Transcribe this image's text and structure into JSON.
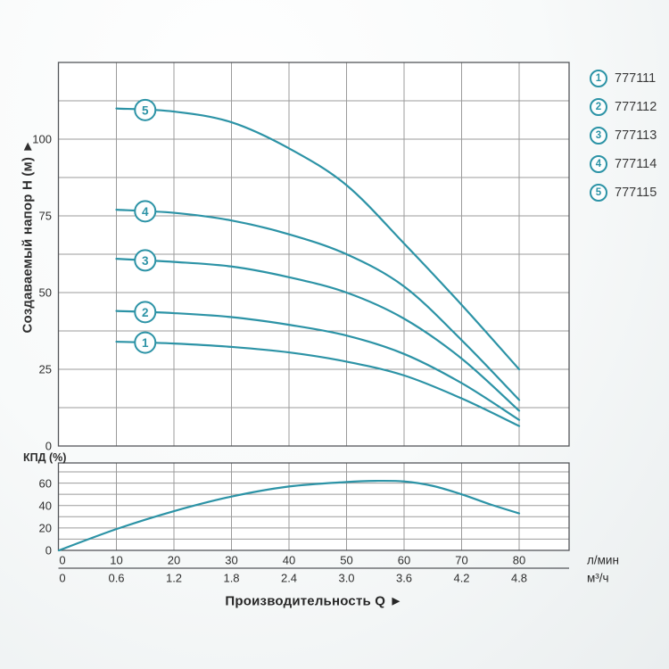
{
  "figure": {
    "y_axis_title": "Создаваемый напор Н (м) ►",
    "x_axis_title": "Производительность Q ►",
    "kpd_axis_title": "КПД (%)",
    "unit_row1": "л/мин",
    "unit_row2": "м³/ч"
  },
  "colors": {
    "curve": "#2c93a6",
    "grid": "#9b9b9b",
    "frame": "#54565a",
    "text": "#2f2f2f",
    "plot_bg": "#ffffff"
  },
  "legend": {
    "items": [
      {
        "num": "1",
        "model": "777111"
      },
      {
        "num": "2",
        "model": "777112"
      },
      {
        "num": "3",
        "model": "777113"
      },
      {
        "num": "4",
        "model": "777114"
      },
      {
        "num": "5",
        "model": "777115"
      }
    ]
  },
  "chart_data": [
    {
      "type": "line",
      "name": "head-vs-flow",
      "title": "",
      "xlabel": "Производительность Q (л/мин | м³/ч)",
      "ylabel": "Создаваемый напор Н (м)",
      "xlim": [
        0,
        88.7
      ],
      "ylim": [
        0,
        125
      ],
      "grid": true,
      "x_ticks_lmin": [
        0,
        10,
        20,
        30,
        40,
        50,
        60,
        70,
        80
      ],
      "x_ticks_m3h": [
        "0",
        "0.6",
        "1.2",
        "1.8",
        "2.4",
        "3.0",
        "3.6",
        "4.2",
        "4.8"
      ],
      "y_ticks": [
        0,
        25,
        50,
        75,
        100
      ],
      "y_grid_step": 12.5,
      "marker_at_x": 15,
      "series": [
        {
          "name": "777111",
          "marker_num": "1",
          "points": [
            [
              10,
              34
            ],
            [
              20,
              33.4
            ],
            [
              30,
              32.3
            ],
            [
              40,
              30.5
            ],
            [
              50,
              27.5
            ],
            [
              60,
              23
            ],
            [
              70,
              15.5
            ],
            [
              80,
              6.5
            ]
          ]
        },
        {
          "name": "777112",
          "marker_num": "2",
          "points": [
            [
              10,
              44
            ],
            [
              20,
              43.3
            ],
            [
              30,
              42
            ],
            [
              40,
              39.5
            ],
            [
              50,
              36
            ],
            [
              60,
              30
            ],
            [
              70,
              20.5
            ],
            [
              80,
              8.5
            ]
          ]
        },
        {
          "name": "777113",
          "marker_num": "3",
          "points": [
            [
              10,
              61
            ],
            [
              20,
              60
            ],
            [
              30,
              58.5
            ],
            [
              40,
              55
            ],
            [
              50,
              50
            ],
            [
              60,
              41.5
            ],
            [
              70,
              28.5
            ],
            [
              80,
              11.5
            ]
          ]
        },
        {
          "name": "777114",
          "marker_num": "4",
          "points": [
            [
              10,
              77
            ],
            [
              20,
              76
            ],
            [
              30,
              73.5
            ],
            [
              40,
              69
            ],
            [
              50,
              62.5
            ],
            [
              60,
              52
            ],
            [
              70,
              34.5
            ],
            [
              80,
              15
            ]
          ]
        },
        {
          "name": "777115",
          "marker_num": "5",
          "points": [
            [
              10,
              110
            ],
            [
              20,
              109
            ],
            [
              30,
              105.5
            ],
            [
              40,
              97
            ],
            [
              50,
              85
            ],
            [
              60,
              66
            ],
            [
              70,
              46
            ],
            [
              80,
              25
            ]
          ]
        }
      ]
    },
    {
      "type": "line",
      "name": "efficiency",
      "title": "",
      "ylabel": "КПД (%)",
      "xlim": [
        0,
        88.7
      ],
      "ylim": [
        0,
        78
      ],
      "grid": true,
      "y_ticks": [
        0,
        20,
        40,
        60
      ],
      "y_grid_step": 10,
      "series": [
        {
          "name": "КПД",
          "points": [
            [
              0,
              0
            ],
            [
              10,
              19
            ],
            [
              20,
              35
            ],
            [
              30,
              48
            ],
            [
              40,
              57
            ],
            [
              50,
              61
            ],
            [
              55,
              62
            ],
            [
              60,
              61.5
            ],
            [
              65,
              57.5
            ],
            [
              70,
              50
            ],
            [
              75,
              41
            ],
            [
              80,
              33
            ]
          ]
        }
      ]
    }
  ]
}
